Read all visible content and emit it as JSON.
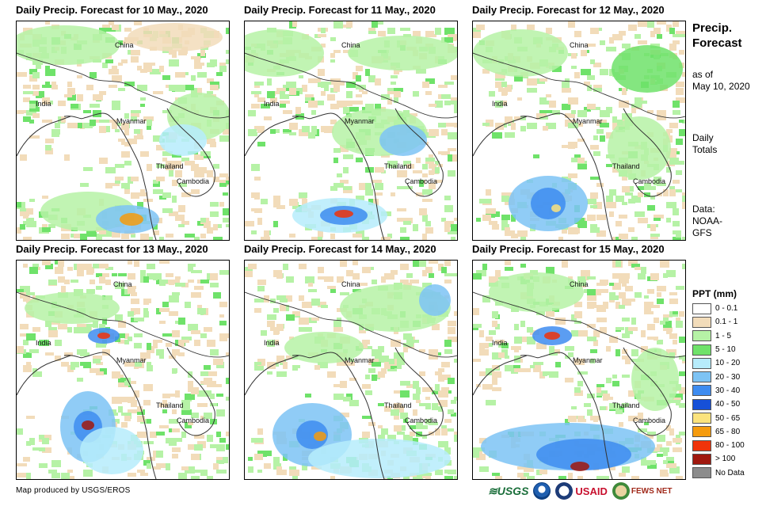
{
  "panels": [
    {
      "title": "Daily Precip. Forecast for 10 May., 2020",
      "labels": {
        "china": "China",
        "india": "India",
        "myanmar": "Myanmar",
        "thailand": "Thailand",
        "cambodia": "Cambodia"
      }
    },
    {
      "title": "Daily Precip. Forecast for 11 May., 2020",
      "labels": {
        "china": "China",
        "india": "India",
        "myanmar": "Myanmar",
        "thailand": "Thailand",
        "cambodia": "Cambodia"
      }
    },
    {
      "title": "Daily Precip. Forecast for 12 May., 2020",
      "labels": {
        "china": "China",
        "india": "India",
        "myanmar": "Myanmar",
        "thailand": "Thailand",
        "cambodia": "Cambodia"
      }
    },
    {
      "title": "Daily Precip. Forecast for 13 May., 2020",
      "labels": {
        "china": "China",
        "india": "India",
        "myanmar": "Myanmar",
        "thailand": "Thailand",
        "cambodia": "Cambodia"
      }
    },
    {
      "title": "Daily Precip. Forecast for 14 May., 2020",
      "labels": {
        "china": "China",
        "india": "India",
        "myanmar": "Myanmar",
        "thailand": "Thailand",
        "cambodia": "Cambodia"
      }
    },
    {
      "title": "Daily Precip. Forecast for 15 May., 2020",
      "labels": {
        "china": "China",
        "india": "India",
        "myanmar": "Myanmar",
        "thailand": "Thailand",
        "cambodia": "Cambodia"
      }
    }
  ],
  "sidebar": {
    "title_line1": "Precip.",
    "title_line2": "Forecast",
    "asof_line1": "as of",
    "asof_line2": "May 10, 2020",
    "totals_line1": "Daily",
    "totals_line2": "Totals",
    "data_line1": "Data:",
    "data_line2": "NOAA-",
    "data_line3": "GFS"
  },
  "legend": {
    "title": "PPT (mm)",
    "items": [
      {
        "label": "0 - 0.1",
        "color": "#ffffff"
      },
      {
        "label": "0.1 - 1",
        "color": "#f2dcba"
      },
      {
        "label": "1 - 5",
        "color": "#b6f2a6"
      },
      {
        "label": "5 - 10",
        "color": "#6fe26a"
      },
      {
        "label": "10 - 20",
        "color": "#b6ecfb"
      },
      {
        "label": "20 - 30",
        "color": "#7dc3f4"
      },
      {
        "label": "30 - 40",
        "color": "#3e8cf0"
      },
      {
        "label": "40 - 50",
        "color": "#1650d8"
      },
      {
        "label": "50 - 65",
        "color": "#fbe37d"
      },
      {
        "label": "65 - 80",
        "color": "#f59b0e"
      },
      {
        "label": "80 - 100",
        "color": "#f0330a"
      },
      {
        "label": "> 100",
        "color": "#a0180e"
      },
      {
        "label": "No Data",
        "color": "#8c8c8c"
      }
    ]
  },
  "footer": {
    "credit": "Map produced by USGS/EROS",
    "logos": {
      "usgs": "USGS",
      "usaid": "USAID",
      "fewsnet": "FEWS NET"
    }
  }
}
